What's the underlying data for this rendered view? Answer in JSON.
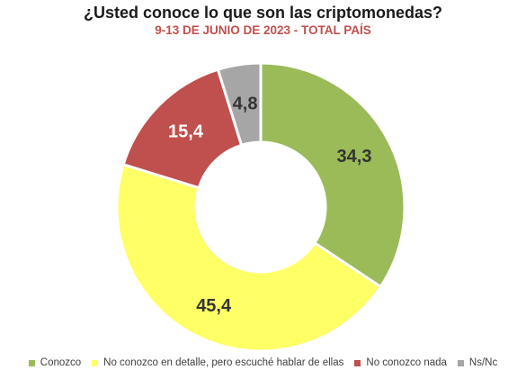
{
  "chart_data": {
    "type": "pie",
    "donut": true,
    "title": "¿Usted conoce lo que son las criptomonedas?",
    "subtitle": "9-13 DE JUNIO DE 2023 - TOTAL PAÍS",
    "categories": [
      "Conozco",
      "No conozco en detalle, pero escuché hablar de ellas",
      "No conozco nada",
      "Ns/Nc"
    ],
    "values": [
      34.3,
      45.4,
      15.4,
      4.8
    ],
    "data_labels": [
      "34,3",
      "45,4",
      "15,4",
      "4,8"
    ],
    "colors": [
      "#9bbb59",
      "#ffff66",
      "#c0504d",
      "#a6a6a6"
    ],
    "subtitle_color": "#c0504d",
    "legend_position": "bottom",
    "start_angle": "12 o'clock",
    "direction": "clockwise"
  }
}
